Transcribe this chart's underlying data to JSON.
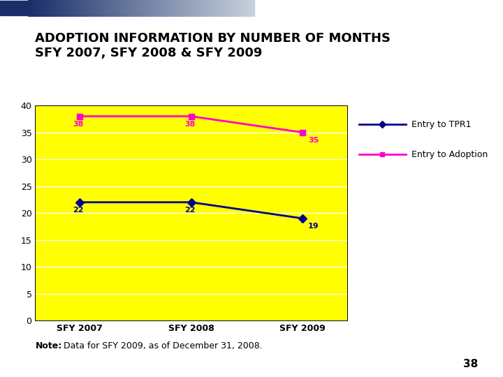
{
  "title_line1": "ADOPTION INFORMATION BY NUMBER OF MONTHS",
  "title_line2": "SFY 2007, SFY 2008 & SFY 2009",
  "categories": [
    "SFY 2007",
    "SFY 2008",
    "SFY 2009"
  ],
  "series": [
    {
      "name": "Entry to TPR1",
      "values": [
        22,
        22,
        19
      ],
      "color": "#00008B",
      "marker": "D",
      "markersize": 6
    },
    {
      "name": "Entry to Adoption",
      "values": [
        38,
        38,
        35
      ],
      "color": "#FF00CC",
      "marker": "s",
      "markersize": 6
    }
  ],
  "ylim": [
    0,
    40
  ],
  "yticks": [
    0,
    5,
    10,
    15,
    20,
    25,
    30,
    35,
    40
  ],
  "plot_bg_color": "#FFFF00",
  "outer_bg_color": "#FFFFFF",
  "note_bold": "Note:",
  "note_regular": "  Data for SFY 2009, as of December 31, 2008.",
  "page_num": "38",
  "title_fontsize": 13,
  "tick_fontsize": 9,
  "legend_fontsize": 9,
  "note_fontsize": 9,
  "label_fontsize": 8
}
